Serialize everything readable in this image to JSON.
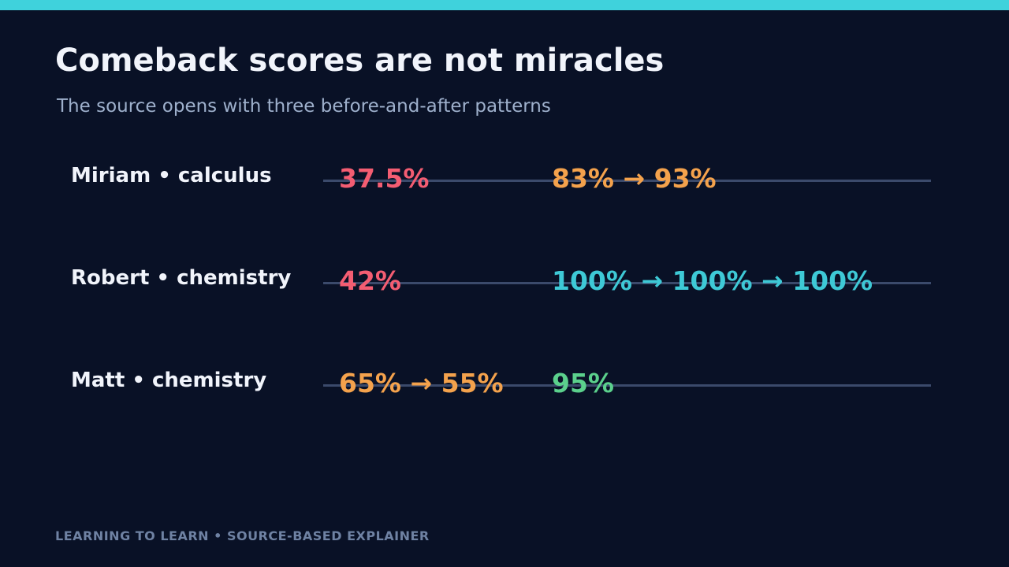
{
  "accent_color": "#3fd2dc",
  "title": "Comeback scores are not miracles",
  "subtitle": "The source opens with three before-and-after patterns",
  "rows": [
    {
      "label": "Miriam  •  calculus",
      "before": "37.5%",
      "before_color": "#f45d72",
      "after": "83%  →  93%",
      "after_color": "#f4a24c"
    },
    {
      "label": "Robert  •  chemistry",
      "before": "42%",
      "before_color": "#f45d72",
      "after": "100% → 100% → 100%",
      "after_color": "#3ec9d6"
    },
    {
      "label": "Matt  •  chemistry",
      "before": "65% → 55%",
      "before_color": "#f4a24c",
      "after": "95%",
      "after_color": "#5bd08c"
    }
  ],
  "footer": "LEARNING TO LEARN  •  SOURCE-BASED EXPLAINER"
}
